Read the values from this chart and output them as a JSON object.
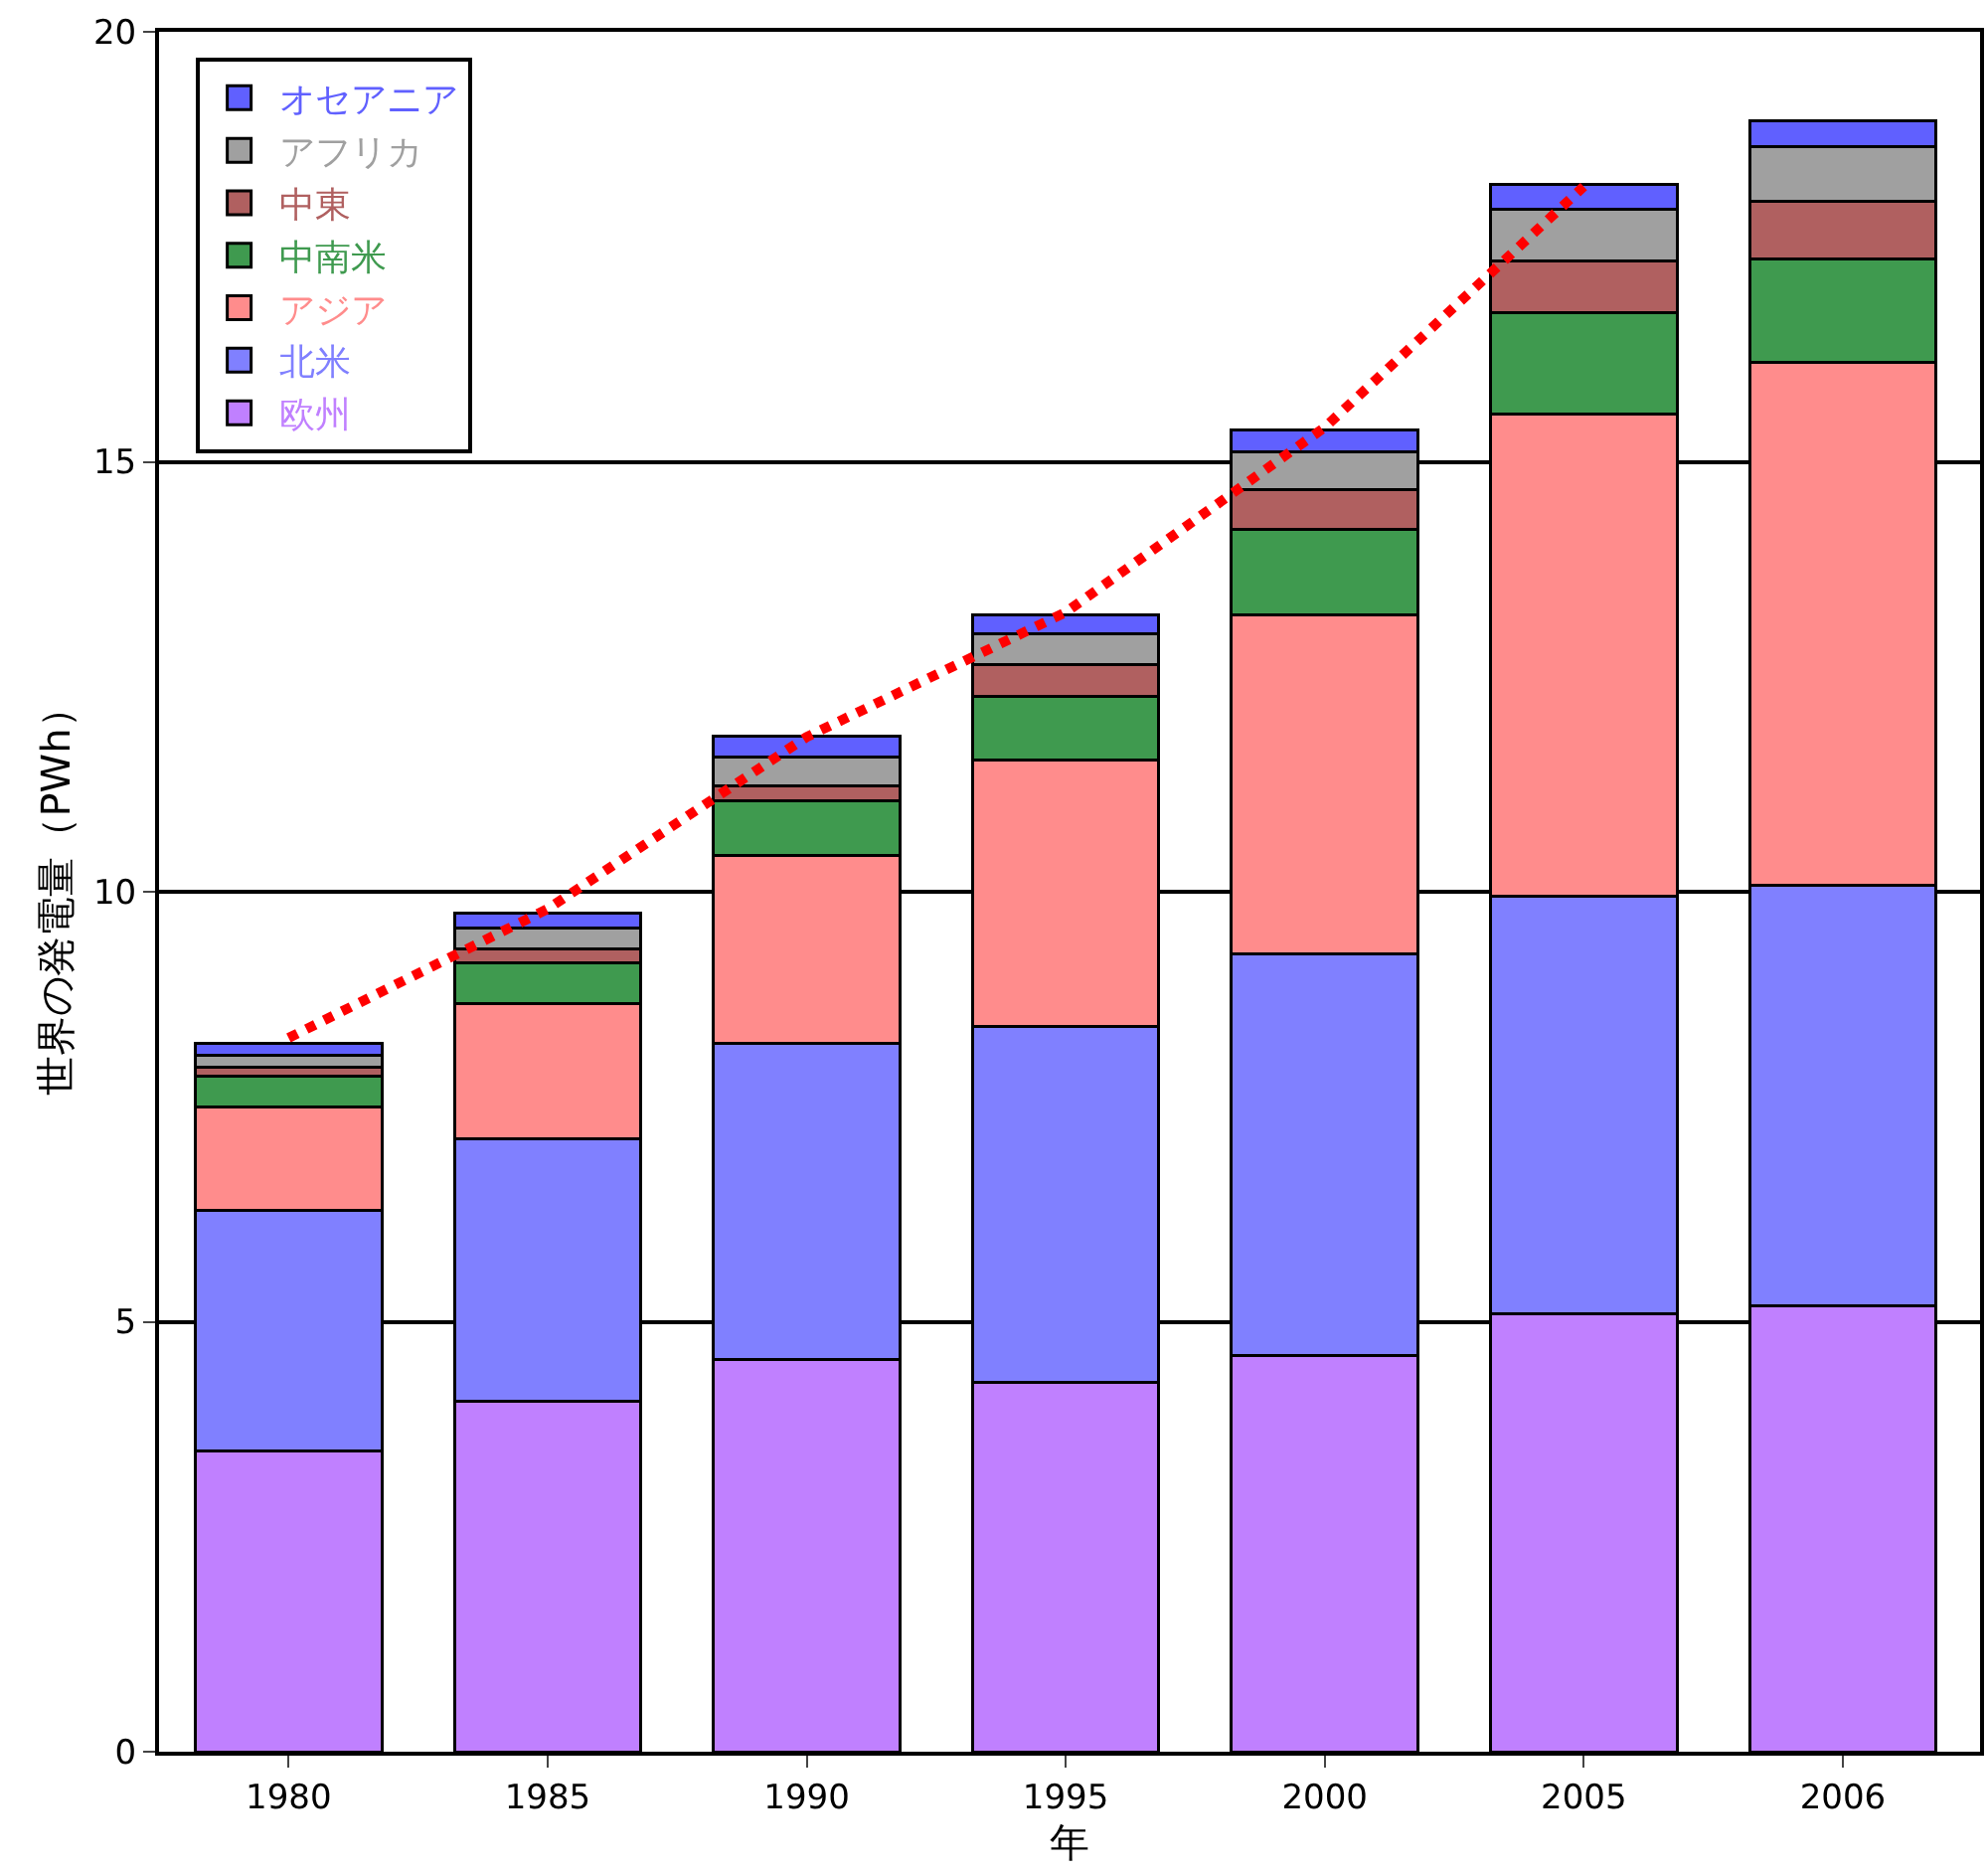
{
  "chart_data": {
    "type": "bar",
    "stacked": true,
    "xlabel": "年",
    "ylabel": "世界の発電量（PWh）",
    "categories": [
      "1980",
      "1985",
      "1990",
      "1995",
      "2000",
      "2005",
      "2006"
    ],
    "ylim": [
      0,
      20
    ],
    "yticks": [
      0,
      5,
      10,
      15,
      20
    ],
    "grid": "y",
    "legend": "top left",
    "series": [
      {
        "name": "欧州",
        "color": "#c080ff",
        "values": [
          3.5,
          4.07,
          4.56,
          4.3,
          4.61,
          5.09,
          5.19
        ]
      },
      {
        "name": "北米",
        "color": "#8080ff",
        "values": [
          2.8,
          3.06,
          3.68,
          4.13,
          4.67,
          4.86,
          4.88
        ]
      },
      {
        "name": "アジア",
        "color": "#ff8c8c",
        "values": [
          1.2,
          1.57,
          2.18,
          3.1,
          3.94,
          5.61,
          6.09
        ]
      },
      {
        "name": "中南米",
        "color": "#3f9a4f",
        "values": [
          0.35,
          0.47,
          0.64,
          0.74,
          0.99,
          1.18,
          1.2
        ]
      },
      {
        "name": "中東",
        "color": "#b06060",
        "values": [
          0.11,
          0.16,
          0.17,
          0.37,
          0.47,
          0.6,
          0.67
        ]
      },
      {
        "name": "アフリカ",
        "color": "#a0a0a0",
        "values": [
          0.14,
          0.25,
          0.34,
          0.36,
          0.43,
          0.6,
          0.63
        ]
      },
      {
        "name": "オセアニア",
        "color": "#6060ff",
        "values": [
          0.14,
          0.17,
          0.24,
          0.22,
          0.26,
          0.28,
          0.3
        ]
      },
      {
        "type": "line",
        "color": "#ff0000",
        "line_style": "dotted",
        "marker": "none",
        "values": [
          8.3,
          9.8,
          11.8,
          13.25,
          15.4,
          18.2,
          null
        ]
      }
    ]
  }
}
